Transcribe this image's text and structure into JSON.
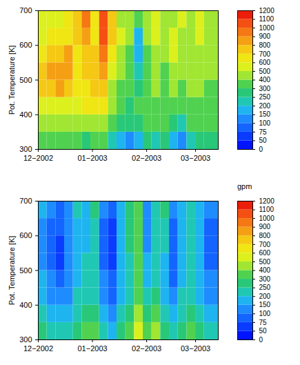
{
  "chart_data": [
    {
      "type": "heatmap",
      "y_label": "Pot. Temperature [K]",
      "xlim": [
        "2002-12-01",
        "2003-03-14"
      ],
      "xticks": [
        {
          "value": "2002-12-01",
          "label": "12−2002"
        },
        {
          "value": "2003-01-01",
          "label": "01−2003"
        },
        {
          "value": "2003-02-01",
          "label": "02−2003"
        },
        {
          "value": "2003-03-01",
          "label": "03−2003"
        }
      ],
      "ylim": [
        300,
        700
      ],
      "yticks": [
        300,
        400,
        500,
        600,
        700
      ],
      "x_edges": [
        "2002-12-01",
        "2002-12-06",
        "2002-12-11",
        "2002-12-16",
        "2002-12-21",
        "2002-12-26",
        "2002-12-31",
        "2003-01-05",
        "2003-01-10",
        "2003-01-15",
        "2003-01-20",
        "2003-01-25",
        "2003-01-30",
        "2003-02-04",
        "2003-02-09",
        "2003-02-14",
        "2003-02-19",
        "2003-02-24",
        "2003-03-01",
        "2003-03-06",
        "2003-03-14"
      ],
      "y_edges": [
        300,
        350,
        400,
        450,
        500,
        550,
        600,
        650,
        700
      ],
      "values": [
        [
          300,
          350,
          300,
          300,
          300,
          250,
          300,
          300,
          200,
          150,
          100,
          150,
          250,
          200,
          250,
          150,
          100,
          200,
          250,
          250
        ],
        [
          400,
          400,
          400,
          400,
          400,
          450,
          400,
          450,
          350,
          250,
          250,
          250,
          300,
          300,
          300,
          250,
          200,
          300,
          300,
          300
        ],
        [
          500,
          500,
          500,
          500,
          500,
          600,
          600,
          600,
          400,
          300,
          250,
          300,
          300,
          350,
          300,
          350,
          300,
          350,
          350,
          300
        ],
        [
          700,
          700,
          800,
          700,
          600,
          650,
          700,
          700,
          450,
          350,
          300,
          250,
          350,
          400,
          350,
          400,
          350,
          400,
          400,
          350
        ],
        [
          700,
          800,
          800,
          800,
          650,
          700,
          700,
          800,
          500,
          400,
          300,
          200,
          350,
          400,
          350,
          450,
          400,
          400,
          400,
          400
        ],
        [
          600,
          700,
          700,
          800,
          650,
          700,
          700,
          900,
          600,
          450,
          350,
          150,
          350,
          450,
          400,
          500,
          450,
          400,
          450,
          400
        ],
        [
          550,
          600,
          600,
          600,
          700,
          800,
          600,
          1000,
          700,
          500,
          400,
          150,
          400,
          500,
          450,
          500,
          450,
          400,
          500,
          450
        ],
        [
          500,
          550,
          500,
          600,
          700,
          900,
          600,
          1000,
          700,
          450,
          400,
          300,
          450,
          500,
          400,
          450,
          500,
          450,
          500,
          450
        ]
      ],
      "colorbar": {
        "levels": [
          0,
          50,
          75,
          100,
          150,
          200,
          250,
          300,
          400,
          500,
          600,
          700,
          800,
          900,
          1000,
          1100,
          1200
        ],
        "colors": [
          "#0014ff",
          "#0a3cff",
          "#1464ff",
          "#1e8cff",
          "#1eb4f0",
          "#20c8b4",
          "#28c878",
          "#50d250",
          "#a0e632",
          "#dcf01e",
          "#f0e614",
          "#f5c814",
          "#f5a014",
          "#f57814",
          "#f55014",
          "#eb1e0a"
        ]
      }
    },
    {
      "type": "heatmap",
      "y_label": "Pot. Temperature [K]",
      "xlim": [
        "2002-12-01",
        "2003-03-14"
      ],
      "xticks": [
        {
          "value": "2002-12-01",
          "label": "12−2002"
        },
        {
          "value": "2003-01-01",
          "label": "01−2003"
        },
        {
          "value": "2003-02-01",
          "label": "02−2003"
        },
        {
          "value": "2003-03-01",
          "label": "03−2003"
        }
      ],
      "ylim": [
        300,
        700
      ],
      "yticks": [
        300,
        400,
        500,
        600,
        700
      ],
      "x_edges": [
        "2002-12-01",
        "2002-12-06",
        "2002-12-11",
        "2002-12-16",
        "2002-12-21",
        "2002-12-26",
        "2002-12-31",
        "2003-01-05",
        "2003-01-10",
        "2003-01-15",
        "2003-01-20",
        "2003-01-25",
        "2003-01-30",
        "2003-02-04",
        "2003-02-09",
        "2003-02-14",
        "2003-02-19",
        "2003-02-24",
        "2003-03-01",
        "2003-03-06",
        "2003-03-14"
      ],
      "y_edges": [
        300,
        350,
        400,
        450,
        500,
        550,
        600,
        650,
        700
      ],
      "values": [
        [
          250,
          200,
          200,
          200,
          250,
          300,
          300,
          200,
          150,
          250,
          300,
          500,
          300,
          400,
          250,
          200,
          250,
          300,
          250,
          200
        ],
        [
          200,
          150,
          150,
          150,
          200,
          250,
          250,
          150,
          100,
          200,
          250,
          400,
          250,
          300,
          200,
          150,
          200,
          250,
          200,
          150
        ],
        [
          150,
          100,
          100,
          100,
          200,
          200,
          200,
          100,
          75,
          150,
          200,
          350,
          200,
          250,
          150,
          100,
          200,
          200,
          150,
          100
        ],
        [
          150,
          100,
          75,
          100,
          150,
          200,
          200,
          100,
          75,
          150,
          200,
          350,
          150,
          200,
          150,
          75,
          150,
          200,
          150,
          100
        ],
        [
          100,
          75,
          50,
          100,
          150,
          200,
          200,
          75,
          50,
          150,
          200,
          300,
          150,
          200,
          150,
          75,
          150,
          200,
          150,
          75
        ],
        [
          100,
          75,
          50,
          100,
          150,
          150,
          200,
          75,
          50,
          150,
          250,
          300,
          100,
          200,
          200,
          75,
          150,
          200,
          150,
          75
        ],
        [
          100,
          75,
          75,
          100,
          150,
          150,
          200,
          75,
          50,
          150,
          250,
          300,
          100,
          200,
          200,
          75,
          150,
          200,
          150,
          75
        ],
        [
          150,
          100,
          75,
          100,
          200,
          150,
          250,
          100,
          75,
          150,
          250,
          300,
          100,
          200,
          250,
          100,
          150,
          200,
          150,
          100
        ]
      ],
      "colorbar": {
        "title": "gpm",
        "levels": [
          0,
          50,
          75,
          100,
          150,
          200,
          250,
          300,
          400,
          500,
          600,
          700,
          800,
          900,
          1000,
          1100,
          1200
        ],
        "colors": [
          "#0014ff",
          "#0a3cff",
          "#1464ff",
          "#1e8cff",
          "#1eb4f0",
          "#20c8b4",
          "#28c878",
          "#50d250",
          "#a0e632",
          "#dcf01e",
          "#f0e614",
          "#f5c814",
          "#f5a014",
          "#f57814",
          "#f55014",
          "#eb1e0a"
        ]
      }
    }
  ]
}
